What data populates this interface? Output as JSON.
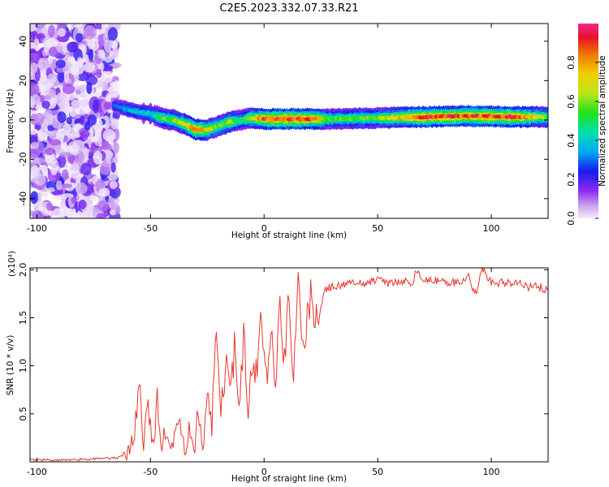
{
  "title": "C2E5.2023.332.07.33.R21",
  "chart_data": [
    {
      "type": "heatmap",
      "xlabel": "Height of straight line (km)",
      "ylabel": "Frequency (Hz)",
      "xlim": [
        -103,
        125
      ],
      "ylim": [
        -50,
        49
      ],
      "xticks": [
        -100,
        -50,
        0,
        50,
        100
      ],
      "yticks": [
        40,
        20,
        0,
        -20,
        -40
      ],
      "colorbar": {
        "label": "Normalized spectral amplitude",
        "range": [
          0.0,
          1.0
        ],
        "ticks": [
          "0.0",
          "0.2",
          "0.4",
          "0.6",
          "0.8"
        ]
      },
      "ridge": {
        "x": [
          -68,
          -62,
          -55,
          -50,
          -45,
          -40,
          -35,
          -30,
          -25,
          -20,
          -15,
          -10,
          -5,
          0,
          10,
          20,
          30,
          50,
          70,
          90,
          110,
          125
        ],
        "freq": [
          8,
          6,
          4,
          3,
          1,
          0,
          -2,
          -5,
          -5,
          -3,
          -1,
          0,
          1,
          0.5,
          0.5,
          0.5,
          0.5,
          1,
          1.5,
          2,
          1.5,
          1.5
        ],
        "amplitude": [
          0.22,
          0.35,
          0.38,
          0.42,
          0.55,
          0.6,
          0.7,
          0.85,
          0.75,
          0.6,
          0.65,
          0.5,
          0.7,
          0.9,
          0.95,
          0.9,
          0.55,
          0.6,
          0.92,
          0.88,
          0.9,
          0.6
        ]
      }
    },
    {
      "type": "line",
      "xlabel": "Height of straight line (km)",
      "ylabel": "SNR (10 * v/v)",
      "scale_label": "(x10⁴)",
      "xlim": [
        -103,
        125
      ],
      "ylim": [
        0,
        2.02
      ],
      "xticks": [
        -100,
        -50,
        0,
        50,
        100
      ],
      "yticks": [
        0.5,
        1.0,
        1.5,
        2.0
      ],
      "ytick_labels": [
        "0.5",
        "1.0",
        "1.5",
        "2.0"
      ],
      "series": [
        {
          "color": "#e8352e",
          "x": [
            -103,
            -90,
            -75,
            -65,
            -60,
            -57,
            -55,
            -53,
            -51,
            -49,
            -47,
            -45,
            -43,
            -41,
            -39,
            -37,
            -35,
            -33,
            -31,
            -29,
            -27,
            -25,
            -23,
            -21,
            -19,
            -17,
            -15,
            -13,
            -11,
            -9,
            -7,
            -5,
            -3,
            -1,
            1,
            3,
            5,
            7,
            9,
            11,
            13,
            15,
            17,
            19,
            21,
            23,
            25,
            27,
            30,
            35,
            40,
            45,
            50,
            55,
            60,
            65,
            67,
            70,
            75,
            80,
            85,
            90,
            93,
            96,
            100,
            105,
            110,
            115,
            120,
            125
          ],
          "y": [
            0.02,
            0.02,
            0.03,
            0.04,
            0.08,
            0.3,
            0.88,
            0.2,
            0.6,
            0.15,
            0.65,
            0.2,
            0.3,
            0.1,
            0.25,
            0.5,
            0.15,
            0.3,
            0.1,
            0.5,
            0.15,
            0.7,
            0.4,
            1.4,
            0.5,
            1.0,
            0.7,
            1.2,
            0.5,
            1.3,
            0.6,
            1.0,
            0.9,
            1.6,
            0.8,
            1.5,
            0.7,
            1.7,
            1.0,
            1.85,
            0.85,
            2.02,
            1.2,
            1.55,
            1.75,
            1.45,
            1.65,
            1.8,
            1.83,
            1.85,
            1.86,
            1.87,
            1.88,
            1.86,
            1.89,
            1.85,
            2.0,
            1.88,
            1.9,
            1.86,
            1.87,
            1.92,
            1.75,
            2.0,
            1.88,
            1.86,
            1.87,
            1.83,
            1.82,
            1.8
          ]
        }
      ]
    }
  ]
}
